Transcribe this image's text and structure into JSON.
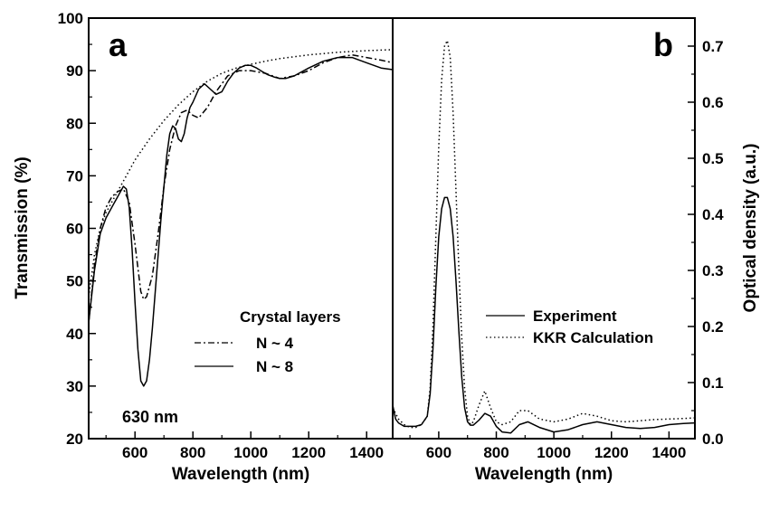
{
  "chart_data": [
    {
      "type": "line",
      "panel_label": "a",
      "xlabel": "Wavelength (nm)",
      "ylabel": "Transmission (%)",
      "xlim": [
        440,
        1490
      ],
      "ylim": [
        20,
        100
      ],
      "xticks": [
        600,
        800,
        1000,
        1200,
        1400
      ],
      "yticks": [
        20,
        30,
        40,
        50,
        60,
        70,
        80,
        90,
        100
      ],
      "grid": false,
      "legend": {
        "title": "Crystal layers",
        "position": "center-right",
        "entries": [
          {
            "label": "N ~ 4",
            "style": "dash-dot"
          },
          {
            "label": "N ~ 8",
            "style": "solid"
          }
        ]
      },
      "annotation": "630 nm",
      "series": [
        {
          "name": "N ~ 4",
          "style": "dash-dot",
          "x": [
            440,
            460,
            480,
            500,
            520,
            540,
            560,
            580,
            600,
            620,
            630,
            640,
            660,
            680,
            700,
            720,
            740,
            760,
            780,
            800,
            820,
            850,
            880,
            920,
            960,
            1000,
            1050,
            1100,
            1150,
            1200,
            1250,
            1300,
            1350,
            1400,
            1450,
            1490
          ],
          "y": [
            42,
            53,
            60,
            64,
            66,
            67,
            67.5,
            65,
            57,
            48,
            46.5,
            47,
            51,
            59,
            68,
            75,
            79.5,
            82,
            82.5,
            81.5,
            81,
            83,
            86,
            89,
            90,
            90,
            89.5,
            88.5,
            89,
            90,
            91.5,
            92.5,
            93,
            92.5,
            92,
            91.5
          ]
        },
        {
          "name": "N ~ 8",
          "style": "solid",
          "x": [
            440,
            460,
            480,
            500,
            520,
            540,
            550,
            560,
            570,
            580,
            590,
            600,
            610,
            620,
            630,
            640,
            650,
            660,
            670,
            680,
            690,
            700,
            710,
            720,
            730,
            740,
            750,
            760,
            770,
            780,
            790,
            800,
            820,
            840,
            860,
            880,
            900,
            920,
            940,
            960,
            980,
            1000,
            1020,
            1040,
            1060,
            1080,
            1100,
            1120,
            1150,
            1200,
            1250,
            1300,
            1350,
            1400,
            1450,
            1490
          ],
          "y": [
            42,
            52,
            59,
            62,
            64,
            66,
            67,
            68,
            67.5,
            64,
            56,
            46,
            37,
            31,
            30,
            31,
            35,
            41,
            48,
            55,
            62,
            68,
            74,
            78,
            79.5,
            79,
            77,
            76.5,
            78,
            81,
            83,
            84,
            86.5,
            87.5,
            86.5,
            85.5,
            86,
            88,
            89.5,
            90.5,
            91,
            91,
            90.5,
            89.8,
            89.2,
            88.8,
            88.5,
            88.5,
            89,
            90.5,
            91.8,
            92.5,
            92.5,
            91.5,
            90.5,
            90.2
          ]
        },
        {
          "name": "",
          "style": "dotted",
          "x": [
            440,
            460,
            480,
            500,
            520,
            540,
            560,
            580,
            600,
            650,
            700,
            750,
            800,
            850,
            900,
            950,
            1000,
            1050,
            1100,
            1200,
            1300,
            1400,
            1490
          ],
          "y": [
            47,
            55,
            60,
            63,
            65,
            67,
            69,
            71,
            73,
            77,
            80.5,
            83.5,
            86,
            88,
            89.5,
            90.5,
            91.2,
            91.8,
            92.3,
            93,
            93.5,
            93.8,
            94
          ]
        }
      ]
    },
    {
      "type": "line",
      "panel_label": "b",
      "xlabel": "Wavelength (nm)",
      "ylabel": "Optical density (a.u.)",
      "xlim": [
        440,
        1490
      ],
      "ylim": [
        0.0,
        0.75
      ],
      "xticks": [
        600,
        800,
        1000,
        1200,
        1400
      ],
      "yticks": [
        0.0,
        0.1,
        0.2,
        0.3,
        0.4,
        0.5,
        0.6,
        0.7
      ],
      "grid": false,
      "legend": {
        "position": "center-right",
        "entries": [
          {
            "label": "Experiment",
            "style": "solid"
          },
          {
            "label": "KKR Calculation",
            "style": "dotted"
          }
        ]
      },
      "series": [
        {
          "name": "Experiment",
          "style": "solid",
          "x": [
            440,
            450,
            460,
            480,
            500,
            520,
            540,
            560,
            570,
            580,
            590,
            600,
            610,
            620,
            630,
            640,
            650,
            660,
            670,
            680,
            690,
            700,
            710,
            720,
            740,
            760,
            780,
            800,
            820,
            850,
            880,
            910,
            950,
            1000,
            1050,
            1100,
            1150,
            1200,
            1250,
            1300,
            1350,
            1400,
            1450,
            1490
          ],
          "y": [
            0.06,
            0.035,
            0.028,
            0.022,
            0.022,
            0.022,
            0.025,
            0.04,
            0.08,
            0.16,
            0.27,
            0.36,
            0.41,
            0.43,
            0.43,
            0.41,
            0.36,
            0.28,
            0.19,
            0.11,
            0.055,
            0.03,
            0.024,
            0.024,
            0.033,
            0.045,
            0.04,
            0.022,
            0.012,
            0.01,
            0.025,
            0.03,
            0.02,
            0.012,
            0.016,
            0.025,
            0.03,
            0.025,
            0.02,
            0.018,
            0.02,
            0.025,
            0.027,
            0.028
          ]
        },
        {
          "name": "KKR Calculation",
          "style": "dotted",
          "x": [
            440,
            460,
            480,
            500,
            520,
            540,
            560,
            570,
            580,
            590,
            600,
            610,
            620,
            630,
            640,
            650,
            660,
            670,
            680,
            690,
            700,
            710,
            720,
            740,
            760,
            780,
            800,
            820,
            850,
            880,
            910,
            950,
            1000,
            1050,
            1100,
            1150,
            1200,
            1250,
            1300,
            1350,
            1400,
            1450,
            1490
          ],
          "y": [
            0.055,
            0.035,
            0.025,
            0.02,
            0.02,
            0.025,
            0.04,
            0.09,
            0.2,
            0.36,
            0.52,
            0.64,
            0.7,
            0.71,
            0.68,
            0.58,
            0.44,
            0.3,
            0.18,
            0.09,
            0.04,
            0.025,
            0.03,
            0.06,
            0.085,
            0.055,
            0.03,
            0.025,
            0.03,
            0.05,
            0.05,
            0.035,
            0.03,
            0.035,
            0.045,
            0.04,
            0.032,
            0.03,
            0.032,
            0.034,
            0.035,
            0.036,
            0.037
          ]
        }
      ]
    }
  ]
}
